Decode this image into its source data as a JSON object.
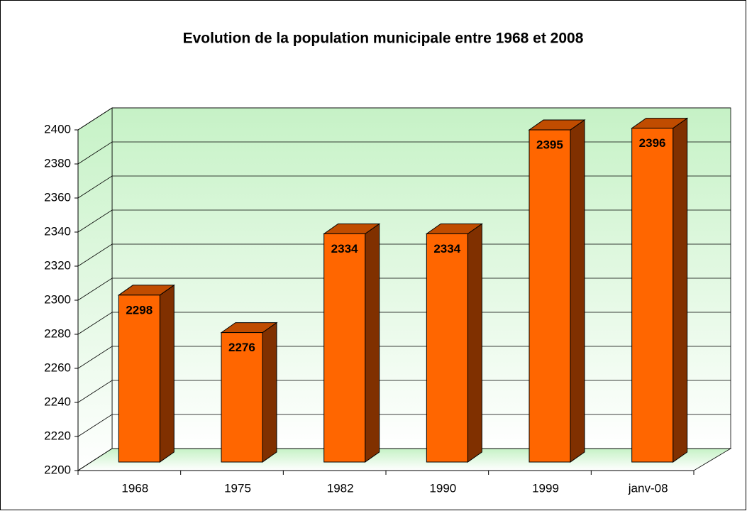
{
  "chart_data": {
    "type": "bar",
    "title": "Evolution de la population municipale entre 1968 et 2008",
    "categories": [
      "1968",
      "1975",
      "1982",
      "1990",
      "1999",
      "janv-08"
    ],
    "values": [
      2298,
      2276,
      2334,
      2334,
      2395,
      2396
    ],
    "color": "#ff6600",
    "ylim": [
      2200,
      2400
    ],
    "yticks": [
      2200,
      2220,
      2240,
      2260,
      2280,
      2300,
      2320,
      2340,
      2360,
      2380,
      2400
    ],
    "grid": true
  }
}
